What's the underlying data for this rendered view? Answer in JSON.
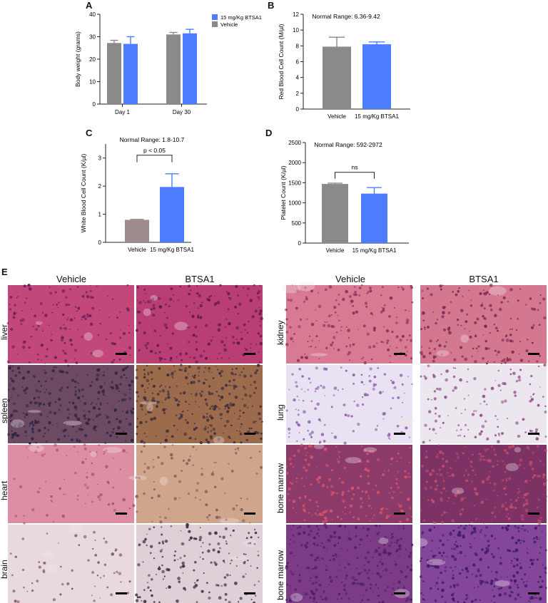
{
  "colors": {
    "vehicle": "#8a8a8a",
    "btsa1": "#4d7cff",
    "panelC_vehicle": "#9d8b8b",
    "axis": "#222222"
  },
  "panels": {
    "A": {
      "letter": "A"
    },
    "B": {
      "letter": "B"
    },
    "C": {
      "letter": "C"
    },
    "D": {
      "letter": "D"
    },
    "E": {
      "letter": "E"
    }
  },
  "chart_data": [
    {
      "id": "A",
      "type": "bar",
      "categories": [
        "Day 1",
        "Day 30"
      ],
      "series": [
        {
          "name": "Vehicle",
          "values": [
            27.2,
            31.0
          ],
          "errors": [
            1.2,
            0.9
          ]
        },
        {
          "name": "15 mg/Kg BTSA1",
          "values": [
            26.8,
            31.5
          ],
          "errors": [
            3.2,
            1.8
          ]
        }
      ],
      "title": "",
      "xlabel": "",
      "ylabel": "Body weight (grams)",
      "ylim": [
        0,
        40
      ],
      "yticks": [
        "0",
        "10",
        "20",
        "30",
        "40"
      ],
      "legend": [
        "15 mg/Kg BTSA1",
        "Vehicle"
      ],
      "legend_position": "top-right",
      "grid": false
    },
    {
      "id": "B",
      "type": "bar",
      "categories": [
        "Vehicle",
        "15 mg/Kg BTSA1"
      ],
      "values": [
        7.9,
        8.2
      ],
      "errors": [
        1.2,
        0.3
      ],
      "annotation": "Normal Range: 6.36-9.42",
      "ylabel": "Red Blood Cell Count (M/µl)",
      "ylim": [
        0,
        12
      ],
      "yticks": [
        "0",
        "2",
        "4",
        "6",
        "8",
        "10",
        "12"
      ],
      "grid": false
    },
    {
      "id": "C",
      "type": "bar",
      "categories": [
        "Vehicle",
        "15 mg/Kg BTSA1"
      ],
      "values": [
        0.8,
        1.97
      ],
      "errors": [
        0.02,
        0.47
      ],
      "annotation": "Normal Range: 1.8-10.7",
      "significance": "p < 0.05",
      "ylabel": "White Blood Cell Count (K/µl)",
      "ylim": [
        0,
        3.5
      ],
      "yticks": [
        "0",
        "1",
        "2",
        "3"
      ],
      "grid": false
    },
    {
      "id": "D",
      "type": "bar",
      "categories": [
        "Vehicle",
        "15 mg/Kg BTSA1"
      ],
      "values": [
        1470,
        1230
      ],
      "errors": [
        20,
        150
      ],
      "annotation": "Normal Range: 592-2972",
      "significance": "ns",
      "ylabel": "Platelet Count (K/µl)",
      "ylim": [
        0,
        2500
      ],
      "yticks": [
        "0",
        "500",
        "1000",
        "1500",
        "2000",
        "2500"
      ],
      "grid": false
    }
  ],
  "histology": {
    "left_columns": [
      "Vehicle",
      "BTSA1"
    ],
    "right_columns": [
      "Vehicle",
      "BTSA1"
    ],
    "left_rows": [
      "liver",
      "spleen",
      "heart",
      "brain"
    ],
    "right_rows": [
      "kidney",
      "lung",
      "bone marrow",
      "bone marrow"
    ]
  }
}
